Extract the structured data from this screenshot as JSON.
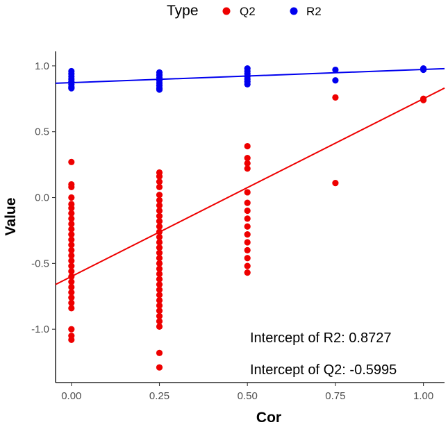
{
  "chart_data": {
    "type": "scatter",
    "xlabel": "Cor",
    "ylabel": "Value",
    "xlim": [
      -0.045,
      1.06
    ],
    "ylim": [
      -1.405,
      1.11
    ],
    "x_ticks": [
      0,
      0.25,
      0.5,
      0.75,
      1
    ],
    "x_tick_labels": [
      "0.00",
      "0.25",
      "0.50",
      "0.75",
      "1.00"
    ],
    "y_ticks": [
      -1,
      -0.5,
      0,
      0.5,
      1
    ],
    "y_tick_labels": [
      "-1.0",
      "-0.5",
      "0.0",
      "0.5",
      "1.0"
    ],
    "grid": false,
    "legend": {
      "title": "Type",
      "placement": "top",
      "entries": [
        {
          "label": "Q2",
          "color": "#ee0000"
        },
        {
          "label": "R2",
          "color": "#0000ee"
        }
      ]
    },
    "series": [
      {
        "name": "Q2",
        "color": "#ee0000",
        "points": [
          [
            0,
            0.27
          ],
          [
            0,
            0.1
          ],
          [
            0,
            0.08
          ],
          [
            0,
            0.0
          ],
          [
            0,
            -0.05
          ],
          [
            0,
            -0.08
          ],
          [
            0,
            -0.12
          ],
          [
            0,
            -0.16
          ],
          [
            0,
            -0.2
          ],
          [
            0,
            -0.24
          ],
          [
            0,
            -0.28
          ],
          [
            0,
            -0.32
          ],
          [
            0,
            -0.36
          ],
          [
            0,
            -0.4
          ],
          [
            0,
            -0.44
          ],
          [
            0,
            -0.48
          ],
          [
            0,
            -0.52
          ],
          [
            0,
            -0.56
          ],
          [
            0,
            -0.6
          ],
          [
            0,
            -0.64
          ],
          [
            0,
            -0.68
          ],
          [
            0,
            -0.72
          ],
          [
            0,
            -0.76
          ],
          [
            0,
            -0.8
          ],
          [
            0,
            -0.84
          ],
          [
            0,
            -1.0
          ],
          [
            0,
            -1.05
          ],
          [
            0,
            -1.08
          ],
          [
            0.25,
            0.19
          ],
          [
            0.25,
            0.16
          ],
          [
            0.25,
            0.12
          ],
          [
            0.25,
            0.08
          ],
          [
            0.25,
            0.02
          ],
          [
            0.25,
            -0.02
          ],
          [
            0.25,
            -0.06
          ],
          [
            0.25,
            -0.1
          ],
          [
            0.25,
            -0.14
          ],
          [
            0.25,
            -0.18
          ],
          [
            0.25,
            -0.22
          ],
          [
            0.25,
            -0.26
          ],
          [
            0.25,
            -0.3
          ],
          [
            0.25,
            -0.34
          ],
          [
            0.25,
            -0.38
          ],
          [
            0.25,
            -0.42
          ],
          [
            0.25,
            -0.46
          ],
          [
            0.25,
            -0.5
          ],
          [
            0.25,
            -0.54
          ],
          [
            0.25,
            -0.58
          ],
          [
            0.25,
            -0.62
          ],
          [
            0.25,
            -0.66
          ],
          [
            0.25,
            -0.7
          ],
          [
            0.25,
            -0.74
          ],
          [
            0.25,
            -0.78
          ],
          [
            0.25,
            -0.82
          ],
          [
            0.25,
            -0.86
          ],
          [
            0.25,
            -0.9
          ],
          [
            0.25,
            -0.94
          ],
          [
            0.25,
            -0.98
          ],
          [
            0.25,
            -1.18
          ],
          [
            0.25,
            -1.29
          ],
          [
            0.5,
            0.39
          ],
          [
            0.5,
            0.3
          ],
          [
            0.5,
            0.26
          ],
          [
            0.5,
            0.22
          ],
          [
            0.5,
            0.04
          ],
          [
            0.5,
            -0.04
          ],
          [
            0.5,
            -0.1
          ],
          [
            0.5,
            -0.16
          ],
          [
            0.5,
            -0.22
          ],
          [
            0.5,
            -0.28
          ],
          [
            0.5,
            -0.34
          ],
          [
            0.5,
            -0.4
          ],
          [
            0.5,
            -0.46
          ],
          [
            0.5,
            -0.52
          ],
          [
            0.5,
            -0.57
          ],
          [
            0.75,
            0.76
          ],
          [
            0.75,
            0.11
          ],
          [
            1,
            0.75
          ],
          [
            1,
            0.74
          ]
        ],
        "trend": {
          "intercept": -0.5995,
          "slope": 1.35
        }
      },
      {
        "name": "R2",
        "color": "#0000ee",
        "points": [
          [
            0,
            0.96
          ],
          [
            0,
            0.94
          ],
          [
            0,
            0.92
          ],
          [
            0,
            0.9
          ],
          [
            0,
            0.88
          ],
          [
            0,
            0.86
          ],
          [
            0,
            0.84
          ],
          [
            0,
            0.83
          ],
          [
            0.25,
            0.95
          ],
          [
            0.25,
            0.93
          ],
          [
            0.25,
            0.91
          ],
          [
            0.25,
            0.89
          ],
          [
            0.25,
            0.87
          ],
          [
            0.25,
            0.85
          ],
          [
            0.25,
            0.83
          ],
          [
            0.25,
            0.82
          ],
          [
            0.5,
            0.98
          ],
          [
            0.5,
            0.96
          ],
          [
            0.5,
            0.94
          ],
          [
            0.5,
            0.92
          ],
          [
            0.5,
            0.9
          ],
          [
            0.5,
            0.88
          ],
          [
            0.5,
            0.86
          ],
          [
            0.75,
            0.97
          ],
          [
            0.75,
            0.89
          ],
          [
            1,
            0.98
          ],
          [
            1,
            0.97
          ]
        ],
        "trend": {
          "intercept": 0.8727,
          "slope": 0.1
        }
      }
    ],
    "annotations": [
      {
        "text": "Intercept of R2: 0.8727"
      },
      {
        "text": "Intercept of Q2: -0.5995"
      }
    ]
  }
}
